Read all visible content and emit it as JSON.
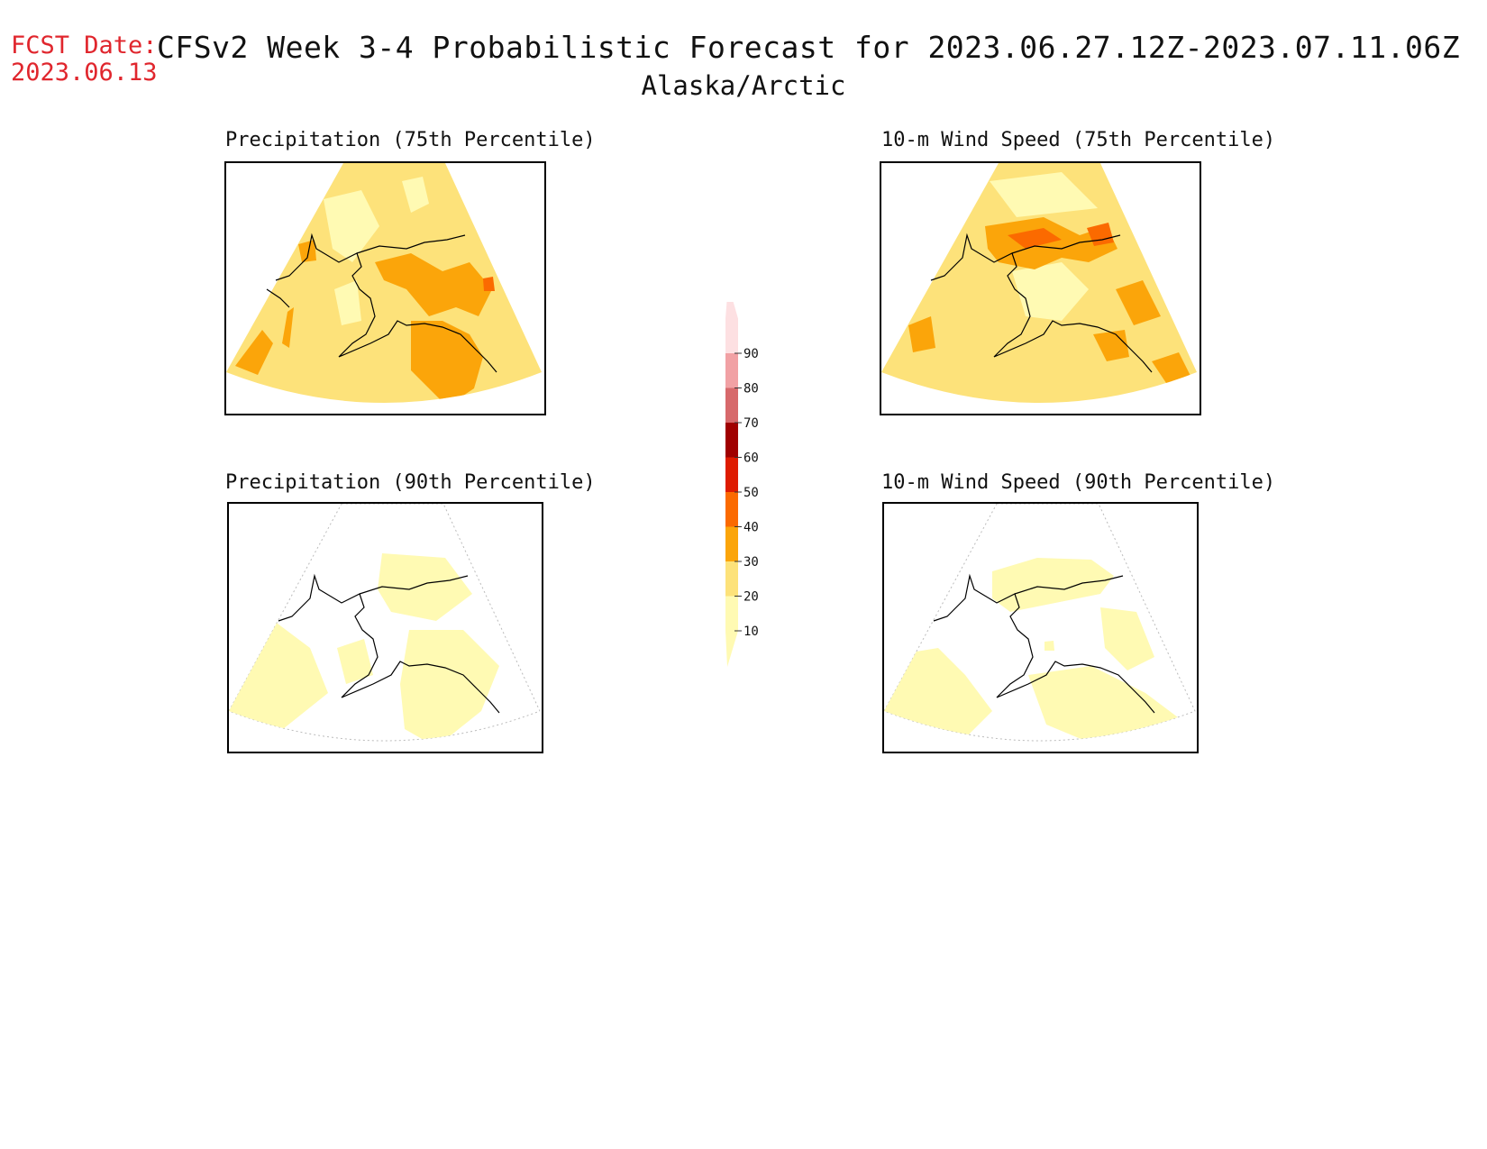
{
  "header": {
    "fcst_label": "FCST Date:",
    "fcst_date": "2023.06.13",
    "title": "CFSv2 Week 3-4 Probabilistic Forecast for 2023.06.27.12Z-2023.07.11.06Z",
    "region": "Alaska/Arctic"
  },
  "panels": [
    {
      "title": "Precipitation (75th Percentile)"
    },
    {
      "title": "10-m Wind Speed (75th Percentile)"
    },
    {
      "title": "Precipitation (90th Percentile)"
    },
    {
      "title": "10-m Wind Speed (90th Percentile)"
    }
  ],
  "legend": {
    "levels": [
      "10",
      "20",
      "30",
      "40",
      "50",
      "60",
      "70",
      "80",
      "90"
    ],
    "colors": [
      "#fffab3",
      "#fde27a",
      "#fba50a",
      "#fb6a00",
      "#de1b00",
      "#a00000",
      "#d7696b",
      "#f1a1a4",
      "#fde0e2"
    ]
  },
  "map_colors": {
    "land_outline": "#000000",
    "level_10": "#fffab3",
    "level_20": "#fde27a",
    "level_30": "#fba50a",
    "level_40": "#fb6a00",
    "graticule": "#999999"
  }
}
